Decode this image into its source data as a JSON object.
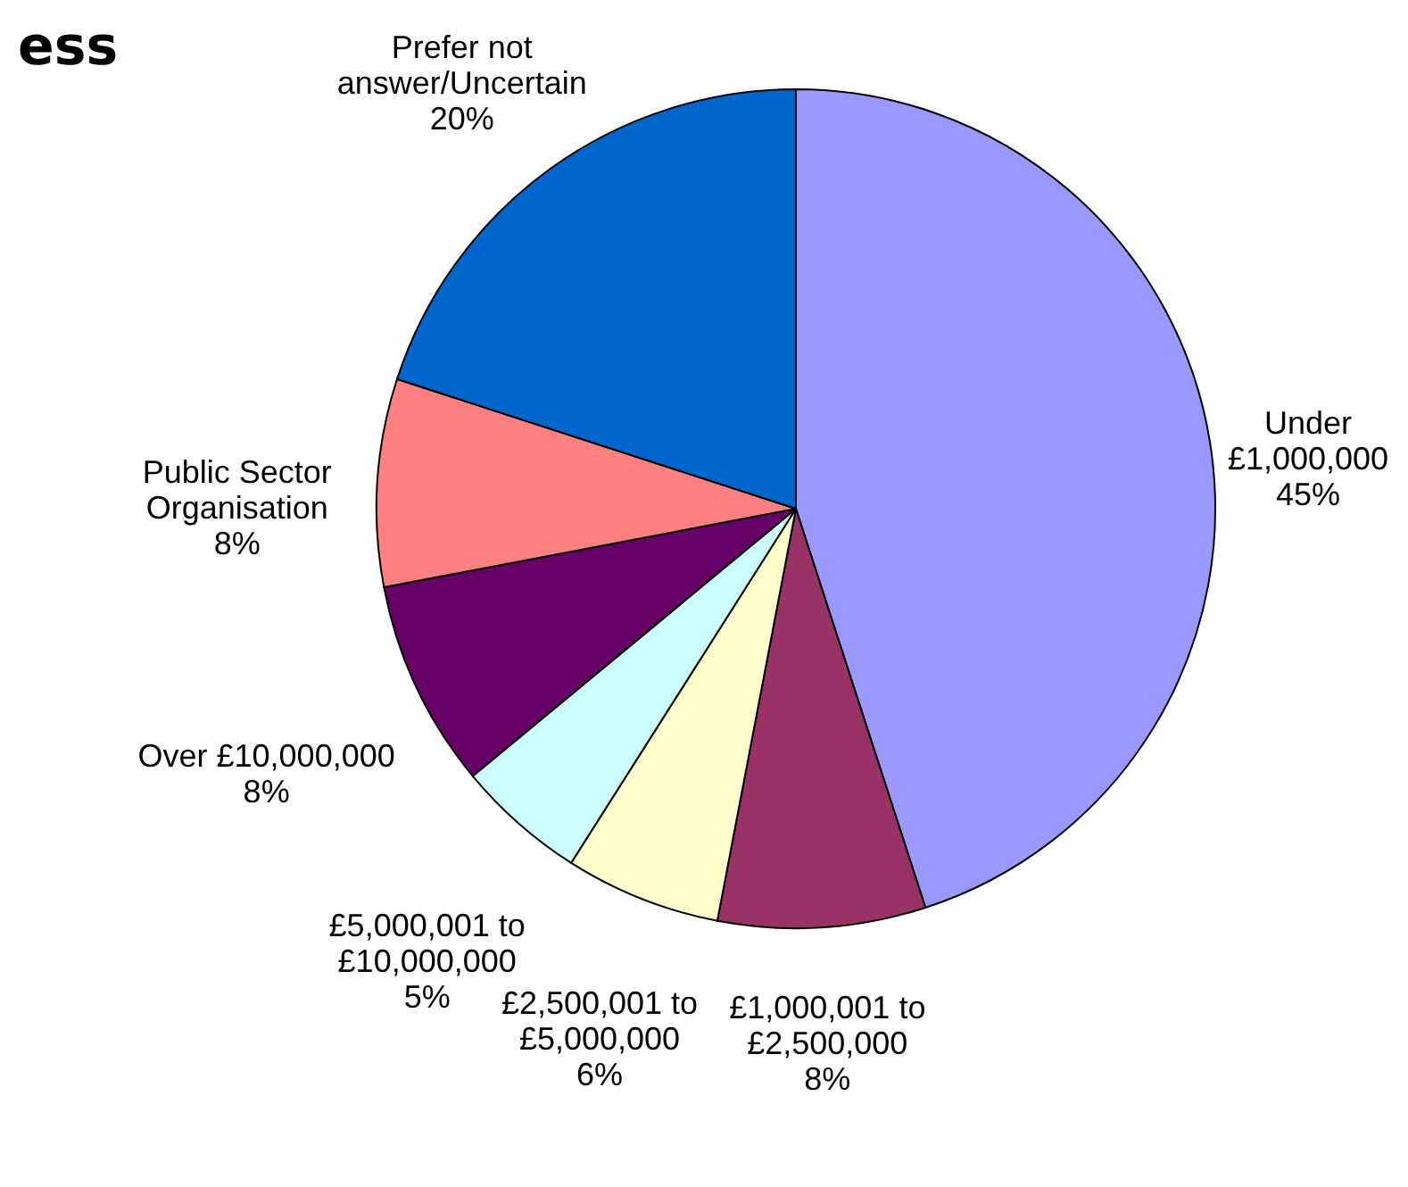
{
  "chart_data": {
    "type": "pie",
    "title": "ess",
    "categories": [
      "Under\n£1,000,000",
      "£1,000,001 to\n£2,500,000",
      "£2,500,001 to\n£5,000,000",
      "£5,000,001 to\n£10,000,000",
      "Over £10,000,000",
      "Public Sector\nOrganisation",
      "Prefer not\nanswer/Uncertain"
    ],
    "values": [
      45,
      8,
      6,
      5,
      8,
      8,
      20
    ],
    "value_labels": [
      "45%",
      "8%",
      "6%",
      "5%",
      "8%",
      "8%",
      "20%"
    ],
    "colors": [
      "#9999ff",
      "#993366",
      "#ffffcc",
      "#ccffff",
      "#660066",
      "#ff8080",
      "#0066cc"
    ]
  }
}
